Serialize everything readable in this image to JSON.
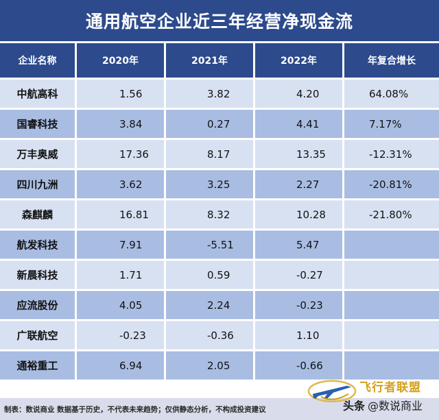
{
  "title": "通用航空企业近三年经营净现金流",
  "headers": [
    "企业名称",
    "2020年",
    "2021年",
    "2022年",
    "年复合增长"
  ],
  "rows": [
    {
      "name": "中航高科",
      "y2020": "1.56",
      "y2021": "3.82",
      "y2022": "4.20",
      "cagr": "64.08%"
    },
    {
      "name": "国睿科技",
      "y2020": "3.84",
      "y2021": "0.27",
      "y2022": "4.41",
      "cagr": "7.17%"
    },
    {
      "name": "万丰奥威",
      "y2020": "17.36",
      "y2021": "8.17",
      "y2022": "13.35",
      "cagr": "-12.31%"
    },
    {
      "name": "四川九洲",
      "y2020": "3.62",
      "y2021": "3.25",
      "y2022": "2.27",
      "cagr": "-20.81%"
    },
    {
      "name": "森麒麟",
      "y2020": "16.81",
      "y2021": "8.32",
      "y2022": "10.28",
      "cagr": "-21.80%"
    },
    {
      "name": "航发科技",
      "y2020": "7.91",
      "y2021": "-5.51",
      "y2022": "5.47",
      "cagr": ""
    },
    {
      "name": "新晨科技",
      "y2020": "1.71",
      "y2021": "0.59",
      "y2022": "-0.27",
      "cagr": ""
    },
    {
      "name": "应流股份",
      "y2020": "4.05",
      "y2021": "2.24",
      "y2022": "-0.23",
      "cagr": ""
    },
    {
      "name": "广联航空",
      "y2020": "-0.23",
      "y2021": "-0.36",
      "y2022": "1.10",
      "cagr": ""
    },
    {
      "name": "通裕重工",
      "y2020": "6.94",
      "y2021": "2.05",
      "y2022": "-0.66",
      "cagr": ""
    }
  ],
  "footer": "制表：数说商业 数据基于历史，不代表未来趋势；仅供静态分析，不构成投资建议",
  "watermark": {
    "brand": "飞行者联盟",
    "source": "头条",
    "handle": "@数说商业",
    "logo_icon": "airplane-logo-icon"
  },
  "colors": {
    "header_bg": "#2c4a8c",
    "row_light": "#d7e1f2",
    "row_dark": "#a9bde3",
    "footer_bg": "#d9dcea",
    "brand_gold": "#d4a017"
  }
}
